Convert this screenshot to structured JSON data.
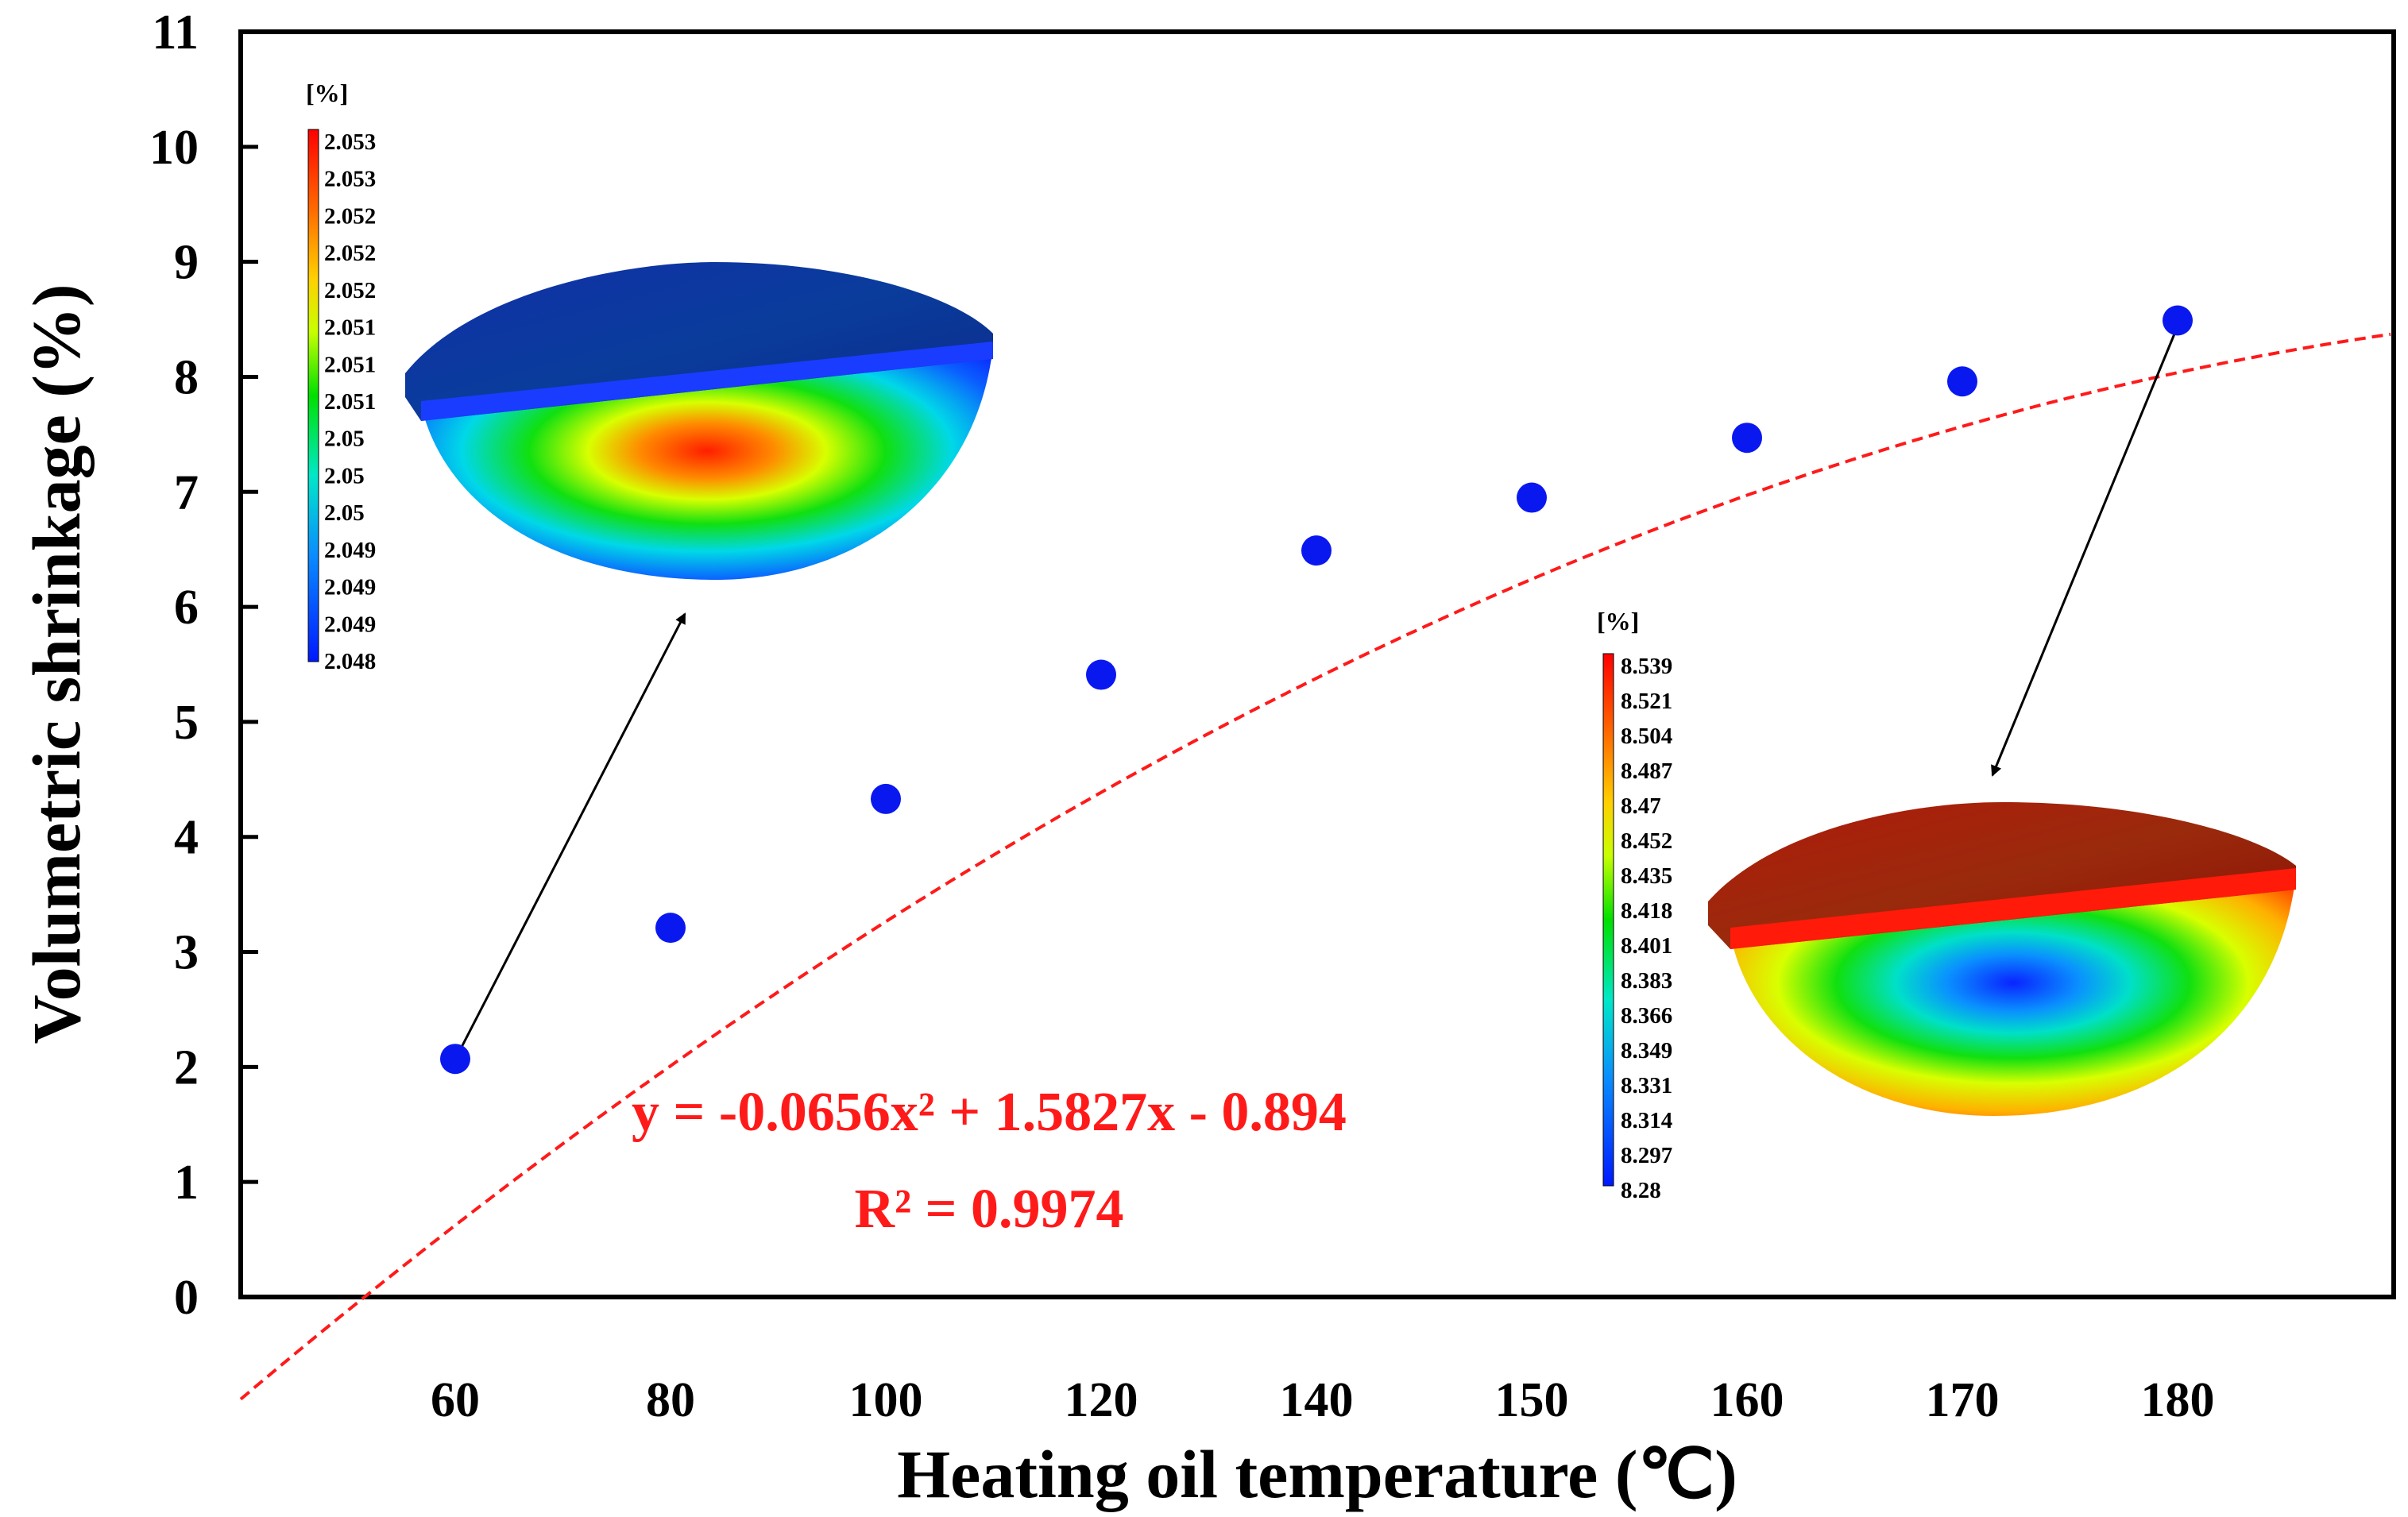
{
  "chart_data": {
    "type": "scatter",
    "xlabel": "Heating oil temperature (℃)",
    "ylabel": "Volumetric shrinkage (%)",
    "categories": [
      "60",
      "80",
      "100",
      "120",
      "140",
      "150",
      "160",
      "170",
      "180"
    ],
    "ylim": [
      0,
      11
    ],
    "yticks": [
      0,
      1,
      2,
      3,
      4,
      5,
      6,
      7,
      8,
      9,
      10,
      11
    ],
    "series": [
      {
        "values": [
          2.07,
          3.21,
          4.33,
          5.41,
          6.49,
          6.95,
          7.47,
          7.96,
          8.49
        ],
        "color": "#0a18f0"
      }
    ],
    "fit": {
      "equation": "y = -0.0656x² + 1.5827x - 0.894",
      "r_squared": "R² = 0.9974",
      "coefficients": [
        -0.0656,
        1.5827,
        -0.894
      ],
      "color": "#ff1a1a"
    },
    "insets": [
      {
        "unit": "[%]",
        "scale_labels": [
          "2.053",
          "2.053",
          "2.052",
          "2.052",
          "2.052",
          "2.051",
          "2.051",
          "2.051",
          "2.05",
          "2.05",
          "2.05",
          "2.049",
          "2.049",
          "2.049",
          "2.048"
        ],
        "hot_center": true,
        "points_to_category": "60"
      },
      {
        "unit": "[%]",
        "scale_labels": [
          "8.539",
          "8.521",
          "8.504",
          "8.487",
          "8.47",
          "8.452",
          "8.435",
          "8.418",
          "8.401",
          "8.383",
          "8.366",
          "8.349",
          "8.331",
          "8.314",
          "8.297",
          "8.28"
        ],
        "hot_center": false,
        "points_to_category": "180"
      }
    ],
    "grid": false,
    "legend": "none"
  }
}
